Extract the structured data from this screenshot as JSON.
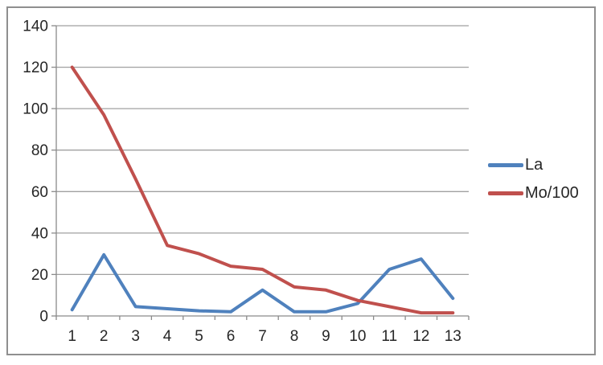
{
  "chart_data": {
    "type": "line",
    "categories": [
      "1",
      "2",
      "3",
      "4",
      "5",
      "6",
      "7",
      "8",
      "9",
      "10",
      "11",
      "12",
      "13"
    ],
    "series": [
      {
        "name": "La",
        "color": "#4F81BD",
        "values": [
          3,
          29.5,
          4.5,
          3.5,
          2.5,
          2,
          12.5,
          2,
          2,
          6,
          22.5,
          27.5,
          8.5
        ]
      },
      {
        "name": "Mo/100",
        "color": "#C0504D",
        "values": [
          120,
          97,
          66,
          34,
          30,
          24,
          22.5,
          14,
          12.5,
          7.5,
          4.5,
          1.5,
          1.5
        ]
      }
    ],
    "ylim": [
      0,
      140
    ],
    "ytick_step": 20,
    "grid": "horizontal",
    "legend_position": "right",
    "line_width": 4,
    "colors": {
      "plot_background": "#FFFFFF",
      "gridline": "#A0A0A0",
      "axis": "#8A8A8A",
      "tick": "#8A8A8A",
      "text": "#262626",
      "frame_border": "#8F8F8F"
    }
  }
}
